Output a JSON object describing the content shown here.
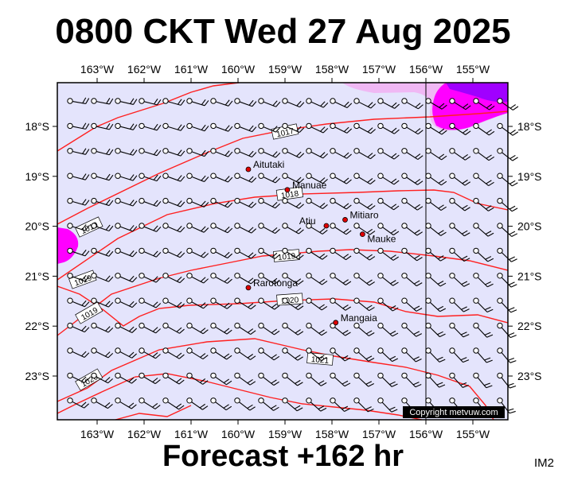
{
  "title": "0800 CKT Wed 27 Aug 2025",
  "footer": "Forecast +162 hr",
  "image_code": "IM2",
  "copyright": "Copyright metvuw.com",
  "lon_labels": [
    "163°W",
    "162°W",
    "161°W",
    "160°W",
    "159°W",
    "158°W",
    "157°W",
    "156°W",
    "155°W"
  ],
  "lat_labels": [
    "18°S",
    "19°S",
    "20°S",
    "21°S",
    "22°S",
    "23°S"
  ],
  "places": [
    {
      "name": "Aitutaki",
      "lon": -159.78,
      "lat": -18.86
    },
    {
      "name": "Manuae",
      "lon": -158.95,
      "lat": -19.27
    },
    {
      "name": "Atiu",
      "lon": -158.12,
      "lat": -19.99
    },
    {
      "name": "Mitiaro",
      "lon": -157.72,
      "lat": -19.87
    },
    {
      "name": "Mauke",
      "lon": -157.35,
      "lat": -20.16
    },
    {
      "name": "Rarotonga",
      "lon": -159.78,
      "lat": -21.23
    },
    {
      "name": "Mangaia",
      "lon": -157.92,
      "lat": -21.93
    }
  ],
  "isobars": [
    {
      "label": "1017"
    },
    {
      "label": "1018"
    },
    {
      "label": "1019"
    },
    {
      "label": "1020"
    },
    {
      "label": "1021"
    }
  ],
  "colors": {
    "ocean": "#e4e4fc",
    "isobar": "#ff2020",
    "magenta": "#ff00ff",
    "purple": "#a000ff",
    "place_dot": "#e00000"
  }
}
